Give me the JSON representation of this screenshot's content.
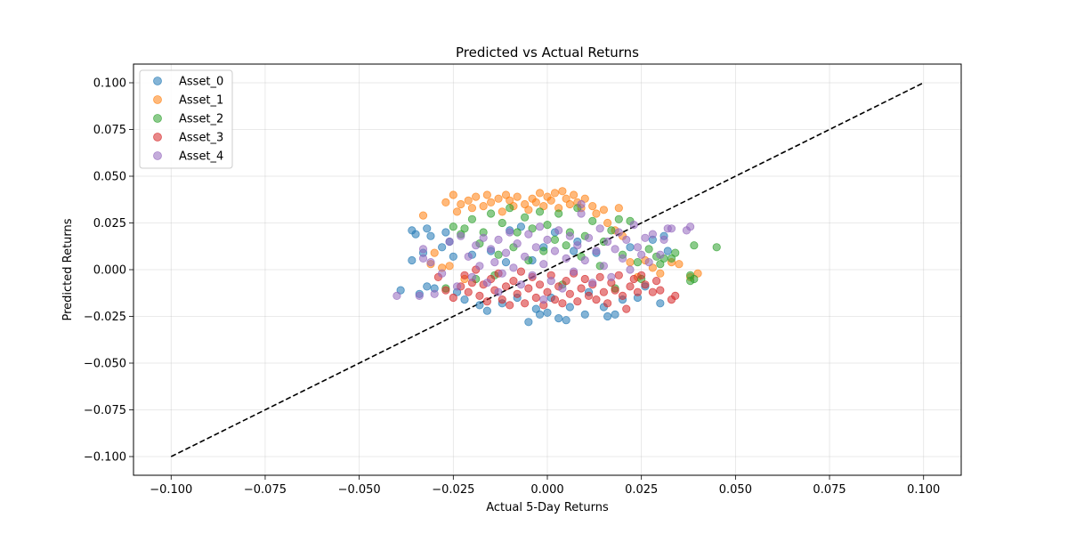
{
  "chart_data": {
    "type": "scatter",
    "title": "Predicted vs Actual Returns",
    "xlabel": "Actual 5-Day Returns",
    "ylabel": "Predicted Returns",
    "xlim": [
      -0.11,
      0.11
    ],
    "ylim": [
      -0.11,
      0.11
    ],
    "xticks": [
      -0.1,
      -0.075,
      -0.05,
      -0.025,
      0.0,
      0.025,
      0.05,
      0.075,
      0.1
    ],
    "yticks": [
      -0.1,
      -0.075,
      -0.05,
      -0.025,
      0.0,
      0.025,
      0.05,
      0.075,
      0.1
    ],
    "xtick_labels": [
      "−0.100",
      "−0.075",
      "−0.050",
      "−0.025",
      "0.000",
      "0.025",
      "0.050",
      "0.075",
      "0.100"
    ],
    "ytick_labels": [
      "−0.100",
      "−0.075",
      "−0.050",
      "−0.025",
      "0.000",
      "0.025",
      "0.050",
      "0.075",
      "0.100"
    ],
    "grid": true,
    "legend_position": "top-left",
    "reference_line": {
      "style": "dashed",
      "color": "#000000",
      "from": [
        -0.1,
        -0.1
      ],
      "to": [
        0.1,
        0.1
      ]
    },
    "series": [
      {
        "name": "Asset_0",
        "color": "#1f77b4",
        "points": [
          [
            -0.036,
            0.021
          ],
          [
            -0.035,
            0.019
          ],
          [
            -0.036,
            0.005
          ],
          [
            -0.033,
            0.009
          ],
          [
            -0.032,
            0.022
          ],
          [
            -0.031,
            0.018
          ],
          [
            -0.03,
            -0.01
          ],
          [
            -0.032,
            -0.009
          ],
          [
            -0.028,
            0.012
          ],
          [
            -0.027,
            0.02
          ],
          [
            -0.026,
            0.015
          ],
          [
            -0.025,
            0.007
          ],
          [
            -0.024,
            -0.012
          ],
          [
            -0.022,
            -0.016
          ],
          [
            -0.02,
            0.008
          ],
          [
            -0.018,
            -0.019
          ],
          [
            -0.016,
            -0.022
          ],
          [
            -0.015,
            0.01
          ],
          [
            -0.012,
            -0.018
          ],
          [
            -0.01,
            0.021
          ],
          [
            -0.008,
            -0.015
          ],
          [
            -0.007,
            0.023
          ],
          [
            -0.005,
            -0.028
          ],
          [
            -0.004,
            0.005
          ],
          [
            -0.003,
            -0.021
          ],
          [
            -0.002,
            -0.024
          ],
          [
            -0.001,
            0.012
          ],
          [
            0.0,
            -0.023
          ],
          [
            0.001,
            -0.015
          ],
          [
            0.002,
            0.02
          ],
          [
            0.003,
            -0.026
          ],
          [
            0.005,
            -0.027
          ],
          [
            0.006,
            -0.02
          ],
          [
            0.008,
            0.015
          ],
          [
            0.01,
            -0.024
          ],
          [
            0.011,
            -0.012
          ],
          [
            0.013,
            0.009
          ],
          [
            0.015,
            -0.02
          ],
          [
            0.016,
            -0.025
          ],
          [
            0.018,
            -0.024
          ],
          [
            0.02,
            -0.016
          ],
          [
            0.022,
            0.012
          ],
          [
            0.024,
            -0.015
          ],
          [
            0.026,
            -0.009
          ],
          [
            0.028,
            0.016
          ],
          [
            0.03,
            -0.018
          ],
          [
            0.031,
            0.018
          ],
          [
            0.032,
            0.01
          ],
          [
            -0.039,
            -0.011
          ],
          [
            -0.034,
            -0.013
          ],
          [
            0.007,
            0.01
          ],
          [
            -0.011,
            0.004
          ]
        ]
      },
      {
        "name": "Asset_1",
        "color": "#ff7f0e",
        "points": [
          [
            -0.033,
            0.029
          ],
          [
            -0.03,
            0.009
          ],
          [
            -0.031,
            0.003
          ],
          [
            -0.028,
            0.001
          ],
          [
            -0.027,
            0.036
          ],
          [
            -0.025,
            0.04
          ],
          [
            -0.024,
            0.031
          ],
          [
            -0.023,
            0.035
          ],
          [
            -0.021,
            0.037
          ],
          [
            -0.02,
            0.033
          ],
          [
            -0.019,
            0.039
          ],
          [
            -0.017,
            0.034
          ],
          [
            -0.016,
            0.04
          ],
          [
            -0.015,
            0.036
          ],
          [
            -0.013,
            0.038
          ],
          [
            -0.012,
            0.031
          ],
          [
            -0.011,
            0.04
          ],
          [
            -0.01,
            0.037
          ],
          [
            -0.009,
            0.034
          ],
          [
            -0.008,
            0.039
          ],
          [
            -0.006,
            0.035
          ],
          [
            -0.005,
            0.032
          ],
          [
            -0.004,
            0.038
          ],
          [
            -0.003,
            0.036
          ],
          [
            -0.002,
            0.041
          ],
          [
            -0.001,
            0.034
          ],
          [
            0.0,
            0.039
          ],
          [
            0.001,
            0.037
          ],
          [
            0.002,
            0.041
          ],
          [
            0.003,
            0.033
          ],
          [
            0.004,
            0.042
          ],
          [
            0.005,
            0.038
          ],
          [
            0.006,
            0.035
          ],
          [
            0.007,
            0.04
          ],
          [
            0.008,
            0.036
          ],
          [
            0.009,
            0.033
          ],
          [
            0.01,
            0.038
          ],
          [
            0.012,
            0.034
          ],
          [
            0.013,
            0.03
          ],
          [
            0.015,
            0.032
          ],
          [
            0.016,
            0.025
          ],
          [
            0.018,
            0.021
          ],
          [
            0.019,
            0.033
          ],
          [
            0.02,
            0.018
          ],
          [
            0.022,
            0.004
          ],
          [
            0.024,
            -0.004
          ],
          [
            0.026,
            0.005
          ],
          [
            0.028,
            0.001
          ],
          [
            0.03,
            -0.002
          ],
          [
            0.033,
            0.004
          ],
          [
            0.035,
            0.003
          ],
          [
            0.04,
            -0.002
          ],
          [
            0.038,
            -0.004
          ],
          [
            -0.022,
            -0.005
          ],
          [
            -0.026,
            0.002
          ]
        ]
      },
      {
        "name": "Asset_2",
        "color": "#2ca02c",
        "points": [
          [
            -0.025,
            0.023
          ],
          [
            -0.023,
            0.019
          ],
          [
            -0.022,
            0.022
          ],
          [
            -0.02,
            0.027
          ],
          [
            -0.019,
            -0.005
          ],
          [
            -0.018,
            0.014
          ],
          [
            -0.017,
            0.02
          ],
          [
            -0.015,
            0.03
          ],
          [
            -0.013,
            0.008
          ],
          [
            -0.012,
            0.025
          ],
          [
            -0.01,
            0.033
          ],
          [
            -0.009,
            0.012
          ],
          [
            -0.008,
            0.02
          ],
          [
            -0.006,
            0.028
          ],
          [
            -0.005,
            0.005
          ],
          [
            -0.004,
            0.022
          ],
          [
            -0.002,
            0.031
          ],
          [
            -0.001,
            0.01
          ],
          [
            0.0,
            0.024
          ],
          [
            0.002,
            0.016
          ],
          [
            0.003,
            0.03
          ],
          [
            0.005,
            0.013
          ],
          [
            0.006,
            0.02
          ],
          [
            0.008,
            0.033
          ],
          [
            0.009,
            0.007
          ],
          [
            0.01,
            0.018
          ],
          [
            0.012,
            0.026
          ],
          [
            0.014,
            0.002
          ],
          [
            0.015,
            0.015
          ],
          [
            0.017,
            0.021
          ],
          [
            0.019,
            0.027
          ],
          [
            0.02,
            0.008
          ],
          [
            0.022,
            0.026
          ],
          [
            0.024,
            0.004
          ],
          [
            0.025,
            -0.005
          ],
          [
            0.027,
            0.011
          ],
          [
            0.029,
            0.007
          ],
          [
            0.031,
            0.006
          ],
          [
            0.033,
            0.006
          ],
          [
            0.034,
            0.009
          ],
          [
            0.038,
            -0.003
          ],
          [
            0.038,
            -0.006
          ],
          [
            0.039,
            -0.005
          ],
          [
            0.039,
            0.013
          ],
          [
            0.045,
            0.012
          ],
          [
            -0.027,
            -0.01
          ],
          [
            -0.014,
            -0.003
          ],
          [
            0.004,
            -0.008
          ],
          [
            0.018,
            -0.01
          ],
          [
            0.03,
            0.003
          ]
        ]
      },
      {
        "name": "Asset_3",
        "color": "#d62728",
        "points": [
          [
            -0.029,
            -0.004
          ],
          [
            -0.027,
            -0.011
          ],
          [
            -0.025,
            -0.015
          ],
          [
            -0.023,
            -0.009
          ],
          [
            -0.022,
            -0.003
          ],
          [
            -0.021,
            -0.012
          ],
          [
            -0.02,
            -0.007
          ],
          [
            -0.019,
            0.0
          ],
          [
            -0.018,
            -0.014
          ],
          [
            -0.017,
            -0.008
          ],
          [
            -0.016,
            -0.017
          ],
          [
            -0.015,
            -0.005
          ],
          [
            -0.014,
            -0.011
          ],
          [
            -0.013,
            -0.002
          ],
          [
            -0.012,
            -0.016
          ],
          [
            -0.011,
            -0.009
          ],
          [
            -0.01,
            -0.019
          ],
          [
            -0.009,
            -0.006
          ],
          [
            -0.008,
            -0.013
          ],
          [
            -0.007,
            -0.001
          ],
          [
            -0.006,
            -0.018
          ],
          [
            -0.005,
            -0.01
          ],
          [
            -0.004,
            -0.004
          ],
          [
            -0.003,
            -0.015
          ],
          [
            -0.002,
            -0.008
          ],
          [
            -0.001,
            -0.019
          ],
          [
            0.0,
            -0.012
          ],
          [
            0.001,
            -0.003
          ],
          [
            0.002,
            -0.016
          ],
          [
            0.003,
            -0.009
          ],
          [
            0.004,
            -0.018
          ],
          [
            0.005,
            -0.006
          ],
          [
            0.006,
            -0.013
          ],
          [
            0.007,
            -0.002
          ],
          [
            0.008,
            -0.017
          ],
          [
            0.009,
            -0.01
          ],
          [
            0.01,
            -0.005
          ],
          [
            0.011,
            -0.014
          ],
          [
            0.012,
            -0.008
          ],
          [
            0.013,
            -0.016
          ],
          [
            0.014,
            -0.004
          ],
          [
            0.015,
            -0.012
          ],
          [
            0.016,
            -0.018
          ],
          [
            0.017,
            -0.007
          ],
          [
            0.018,
            -0.011
          ],
          [
            0.019,
            -0.003
          ],
          [
            0.02,
            -0.014
          ],
          [
            0.021,
            -0.021
          ],
          [
            0.022,
            -0.009
          ],
          [
            0.023,
            -0.005
          ],
          [
            0.024,
            -0.012
          ],
          [
            0.025,
            -0.003
          ],
          [
            0.026,
            -0.008
          ],
          [
            0.028,
            -0.012
          ],
          [
            0.029,
            -0.006
          ],
          [
            0.03,
            -0.011
          ],
          [
            0.033,
            -0.016
          ],
          [
            0.034,
            -0.014
          ]
        ]
      },
      {
        "name": "Asset_4",
        "color": "#9467bd",
        "points": [
          [
            -0.04,
            -0.014
          ],
          [
            -0.034,
            -0.014
          ],
          [
            -0.033,
            0.006
          ],
          [
            -0.033,
            0.011
          ],
          [
            -0.031,
            0.004
          ],
          [
            -0.03,
            -0.013
          ],
          [
            -0.028,
            -0.002
          ],
          [
            -0.026,
            0.015
          ],
          [
            -0.024,
            -0.009
          ],
          [
            -0.023,
            0.018
          ],
          [
            -0.021,
            0.007
          ],
          [
            -0.02,
            -0.004
          ],
          [
            -0.019,
            0.013
          ],
          [
            -0.018,
            0.002
          ],
          [
            -0.017,
            0.017
          ],
          [
            -0.016,
            -0.007
          ],
          [
            -0.015,
            0.011
          ],
          [
            -0.014,
            0.004
          ],
          [
            -0.013,
            0.016
          ],
          [
            -0.012,
            -0.002
          ],
          [
            -0.011,
            0.009
          ],
          [
            -0.01,
            0.02
          ],
          [
            -0.009,
            0.001
          ],
          [
            -0.008,
            0.014
          ],
          [
            -0.007,
            -0.008
          ],
          [
            -0.006,
            0.007
          ],
          [
            -0.005,
            0.019
          ],
          [
            -0.004,
            -0.003
          ],
          [
            -0.003,
            0.012
          ],
          [
            -0.002,
            0.023
          ],
          [
            -0.001,
            0.003
          ],
          [
            0.0,
            0.016
          ],
          [
            0.001,
            -0.006
          ],
          [
            0.002,
            0.01
          ],
          [
            0.003,
            0.021
          ],
          [
            0.004,
            -0.01
          ],
          [
            0.005,
            0.006
          ],
          [
            0.006,
            0.018
          ],
          [
            0.007,
            -0.001
          ],
          [
            0.008,
            0.013
          ],
          [
            0.009,
            0.03
          ],
          [
            0.01,
            0.005
          ],
          [
            0.011,
            0.017
          ],
          [
            0.012,
            -0.007
          ],
          [
            0.013,
            0.01
          ],
          [
            0.014,
            0.022
          ],
          [
            0.015,
            0.002
          ],
          [
            0.016,
            0.015
          ],
          [
            0.017,
            -0.004
          ],
          [
            0.018,
            0.011
          ],
          [
            0.019,
            0.02
          ],
          [
            0.02,
            0.006
          ],
          [
            0.021,
            0.016
          ],
          [
            0.022,
            0.0
          ],
          [
            0.023,
            0.024
          ],
          [
            0.024,
            0.012
          ],
          [
            0.025,
            0.008
          ],
          [
            0.026,
            0.017
          ],
          [
            0.027,
            0.004
          ],
          [
            0.028,
            0.019
          ],
          [
            0.03,
            0.008
          ],
          [
            0.031,
            0.016
          ],
          [
            0.032,
            0.022
          ],
          [
            0.033,
            0.022
          ],
          [
            0.037,
            0.021
          ],
          [
            0.038,
            0.023
          ],
          [
            0.009,
            0.035
          ],
          [
            -0.001,
            -0.016
          ],
          [
            -0.013,
            -0.012
          ]
        ]
      }
    ]
  }
}
